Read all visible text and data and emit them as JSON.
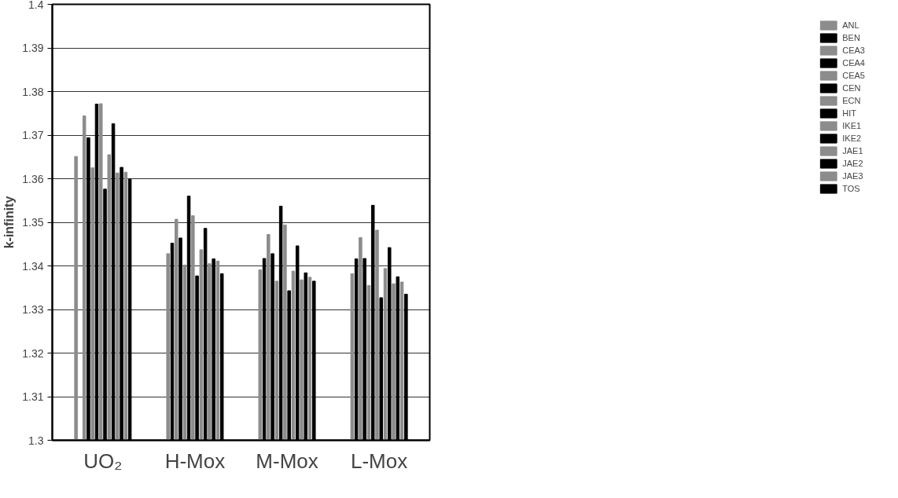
{
  "chart_data": {
    "type": "bar",
    "ylabel": "k-infinity",
    "categories": [
      "UO₂",
      "H-Mox",
      "M-Mox",
      "L-Mox"
    ],
    "ylim": [
      1.3,
      1.4
    ],
    "yticks": [
      1.3,
      1.31,
      1.32,
      1.33,
      1.34,
      1.35,
      1.36,
      1.37,
      1.38,
      1.39,
      1.4
    ],
    "grid": "y",
    "legend": "right",
    "series": [
      {
        "name": "ANL",
        "color": "#8c8c8c",
        "values": [
          1.3651,
          1.3428,
          1.3391,
          1.3382
        ]
      },
      {
        "name": "BEN",
        "color": "#000000",
        "values": [
          null,
          1.3452,
          1.3417,
          1.3416
        ]
      },
      {
        "name": "CEA3",
        "color": "#8c8c8c",
        "values": [
          1.3744,
          1.3507,
          1.3472,
          1.3465
        ]
      },
      {
        "name": "CEA4",
        "color": "#000000",
        "values": [
          1.3694,
          1.3464,
          1.3428,
          1.3417
        ]
      },
      {
        "name": "CEA5",
        "color": "#8c8c8c",
        "values": [
          1.3625,
          1.3402,
          1.3365,
          1.3355
        ]
      },
      {
        "name": "CEN",
        "color": "#000000",
        "values": [
          1.3771,
          1.356,
          1.3537,
          1.3539
        ]
      },
      {
        "name": "ECN",
        "color": "#8c8c8c",
        "values": [
          1.3772,
          1.3515,
          1.3494,
          1.3482
        ]
      },
      {
        "name": "HIT",
        "color": "#000000",
        "values": [
          1.3576,
          1.3377,
          1.3343,
          1.3327
        ]
      },
      {
        "name": "IKE1",
        "color": "#8c8c8c",
        "values": [
          1.3655,
          1.3437,
          1.3388,
          1.3394
        ]
      },
      {
        "name": "IKE2",
        "color": "#000000",
        "values": [
          1.3726,
          1.3486,
          1.3446,
          1.3442
        ]
      },
      {
        "name": "JAE1",
        "color": "#8c8c8c",
        "values": [
          1.3613,
          1.3405,
          1.3368,
          1.3359
        ]
      },
      {
        "name": "JAE2",
        "color": "#000000",
        "values": [
          1.3626,
          1.3416,
          1.3384,
          1.3375
        ]
      },
      {
        "name": "JAE3",
        "color": "#8c8c8c",
        "values": [
          1.3615,
          1.3411,
          1.3374,
          1.3363
        ]
      },
      {
        "name": "TOS",
        "color": "#000000",
        "values": [
          1.3599,
          1.3382,
          1.3365,
          1.3335
        ]
      }
    ]
  }
}
